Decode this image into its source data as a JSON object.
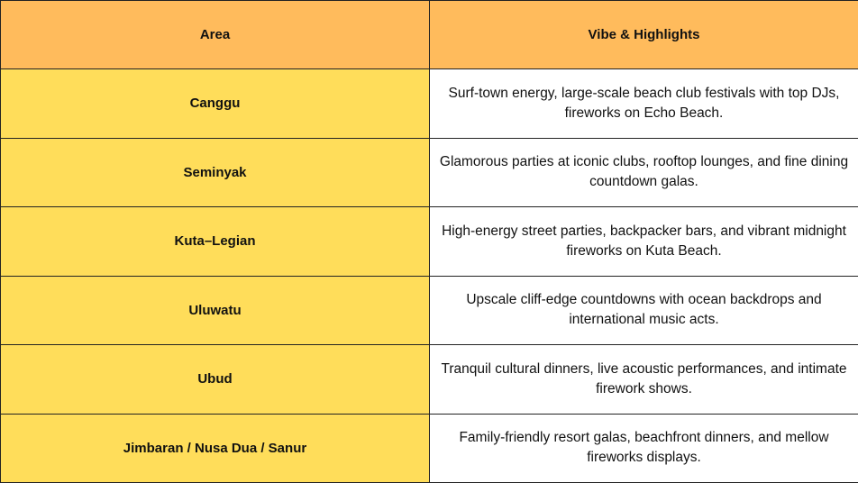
{
  "table": {
    "headers": {
      "area": "Area",
      "vibe": "Vibe & Highlights"
    },
    "rows": [
      {
        "area": "Canggu",
        "vibe": "Surf-town energy, large-scale beach club festivals with top DJs, fireworks on Echo Beach."
      },
      {
        "area": "Seminyak",
        "vibe": "Glamorous parties at iconic clubs, rooftop lounges, and fine dining countdown galas."
      },
      {
        "area": "Kuta–Legian",
        "vibe": "High-energy street parties, backpacker bars, and vibrant midnight fireworks on Kuta Beach."
      },
      {
        "area": "Uluwatu",
        "vibe": "Upscale cliff-edge countdowns with ocean backdrops and international music acts."
      },
      {
        "area": "Ubud",
        "vibe": "Tranquil cultural dinners, live acoustic performances, and intimate firework shows."
      },
      {
        "area": "Jimbaran / Nusa Dua / Sanur",
        "vibe": "Family-friendly resort galas, beachfront dinners, and mellow fireworks displays."
      }
    ]
  },
  "colors": {
    "header_bg": "#FFBB5C",
    "area_bg": "#FFDD5A",
    "vibe_bg": "#FFFFFF",
    "border": "#222222"
  }
}
